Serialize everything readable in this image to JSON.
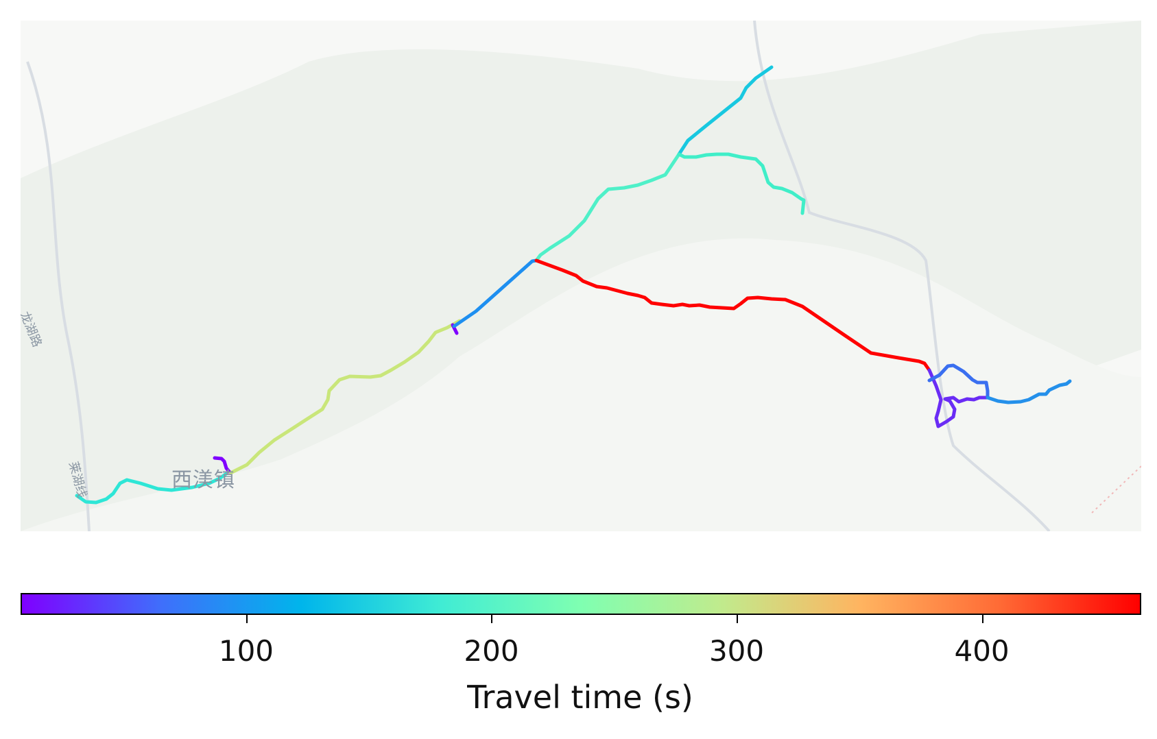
{
  "map": {
    "place_label": "西渼镇",
    "road_label_a": "龙湖路",
    "road_label_b": "莱湖线",
    "colormap": "rainbow",
    "background": "#f2f4f1",
    "route_segments": [
      {
        "id": "seg-west-start",
        "travel_time_s": 195,
        "color": "#2ee6d6"
      },
      {
        "id": "seg-town-spur",
        "travel_time_s": 15,
        "color": "#7f00ff"
      },
      {
        "id": "seg-town-to-mid",
        "travel_time_s": 295,
        "color": "#c9e67a"
      },
      {
        "id": "seg-mid-spur",
        "travel_time_s": 15,
        "color": "#7f00ff"
      },
      {
        "id": "seg-mid-to-junction",
        "travel_time_s": 110,
        "color": "#1e8ff0"
      },
      {
        "id": "seg-junction-north",
        "travel_time_s": 205,
        "color": "#4ff0c8"
      },
      {
        "id": "seg-north-branch-top",
        "travel_time_s": 160,
        "color": "#18c8e0"
      },
      {
        "id": "seg-north-branch-east",
        "travel_time_s": 210,
        "color": "#40eec8"
      },
      {
        "id": "seg-junction-east",
        "travel_time_s": 465,
        "color": "#ff0000"
      },
      {
        "id": "seg-east-loop-lower",
        "travel_time_s": 30,
        "color": "#6a2cf5"
      },
      {
        "id": "seg-east-loop-upper",
        "travel_time_s": 80,
        "color": "#3a6ff0"
      },
      {
        "id": "seg-east-end",
        "travel_time_s": 90,
        "color": "#2490ea"
      }
    ]
  },
  "colorbar": {
    "min": 8,
    "max": 465,
    "stops": [
      "#7f00ff",
      "#3f6ffb",
      "#00b5eb",
      "#40ecd4",
      "#7fffb1",
      "#c0eb8d",
      "#ffb460",
      "#ff6a35",
      "#ff0000"
    ],
    "ticks": [
      100,
      200,
      300,
      400
    ],
    "tick_labels": [
      "100",
      "200",
      "300",
      "400"
    ],
    "label": "Travel time (s)"
  }
}
